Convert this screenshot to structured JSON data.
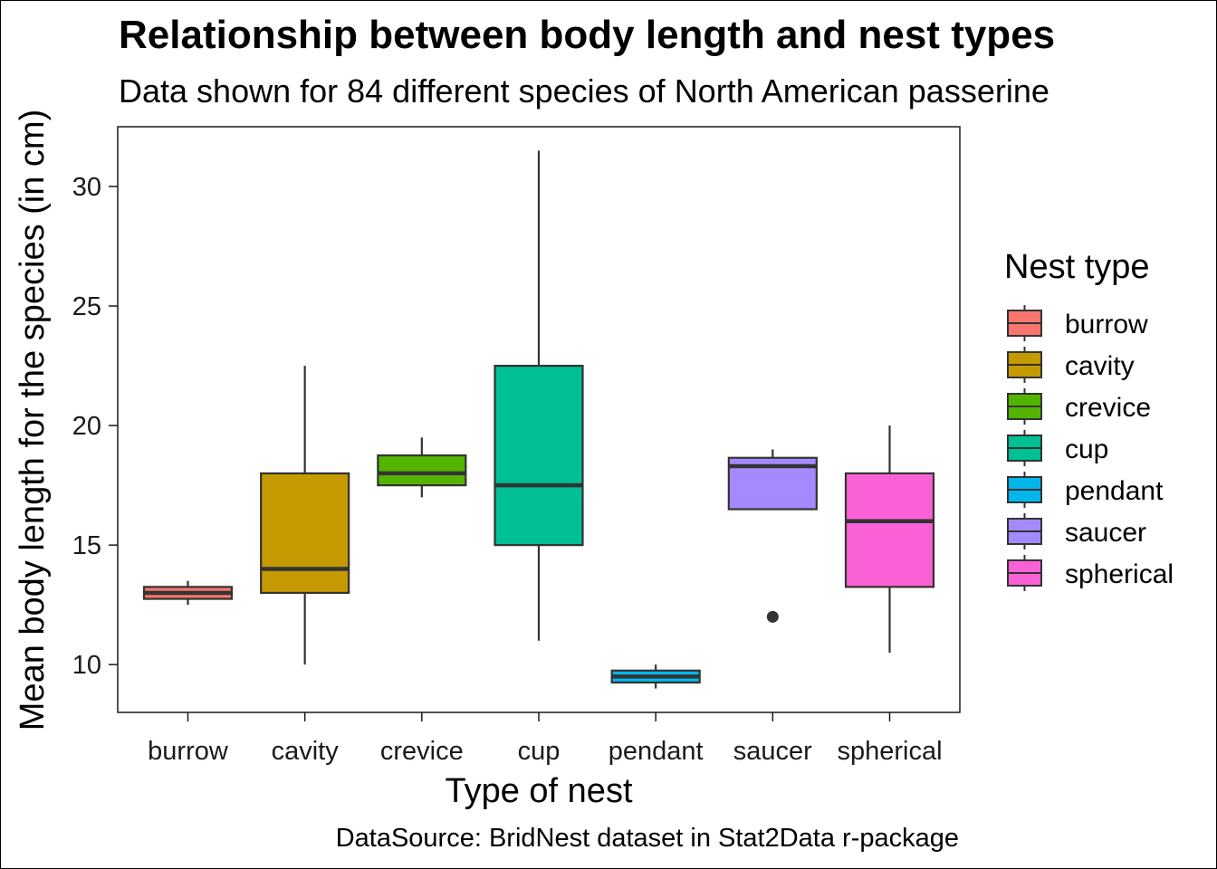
{
  "chart_data": {
    "type": "boxplot",
    "title": "Relationship between body length and nest types",
    "subtitle": "Data shown for 84 different species of North American passerine",
    "xlabel": "Type of nest",
    "ylabel": "Mean body length for the species (in cm)",
    "caption": "DataSource: BridNest dataset in Stat2Data r-package",
    "ylim": [
      8,
      32.5
    ],
    "yticks": [
      10,
      15,
      20,
      25,
      30
    ],
    "ytick_labels": [
      "10",
      "15",
      "20",
      "25",
      "30"
    ],
    "grid": false,
    "legend": {
      "title": "Nest type",
      "position": "right"
    },
    "categories": [
      "burrow",
      "cavity",
      "crevice",
      "cup",
      "pendant",
      "saucer",
      "spherical"
    ],
    "series": [
      {
        "name": "burrow",
        "color": "#F8766D",
        "min": 12.5,
        "q1": 12.75,
        "median": 13.0,
        "q3": 13.25,
        "max": 13.5,
        "outliers": []
      },
      {
        "name": "cavity",
        "color": "#C49A00",
        "min": 10.0,
        "q1": 13.0,
        "median": 14.0,
        "q3": 18.0,
        "max": 22.5,
        "outliers": []
      },
      {
        "name": "crevice",
        "color": "#53B400",
        "min": 17.0,
        "q1": 17.5,
        "median": 18.0,
        "q3": 18.75,
        "max": 19.5,
        "outliers": []
      },
      {
        "name": "cup",
        "color": "#00C094",
        "min": 11.0,
        "q1": 15.0,
        "median": 17.5,
        "q3": 22.5,
        "max": 31.5,
        "outliers": []
      },
      {
        "name": "pendant",
        "color": "#00B6EB",
        "min": 9.0,
        "q1": 9.25,
        "median": 9.5,
        "q3": 9.75,
        "max": 10.0,
        "outliers": []
      },
      {
        "name": "saucer",
        "color": "#A58AFF",
        "min": 16.5,
        "q1": 16.5,
        "median": 18.3,
        "q3": 18.65,
        "max": 19.0,
        "outliers": [
          12.0
        ]
      },
      {
        "name": "spherical",
        "color": "#FB61D7",
        "min": 10.5,
        "q1": 13.25,
        "median": 16.0,
        "q3": 18.0,
        "max": 20.0,
        "outliers": []
      }
    ]
  }
}
